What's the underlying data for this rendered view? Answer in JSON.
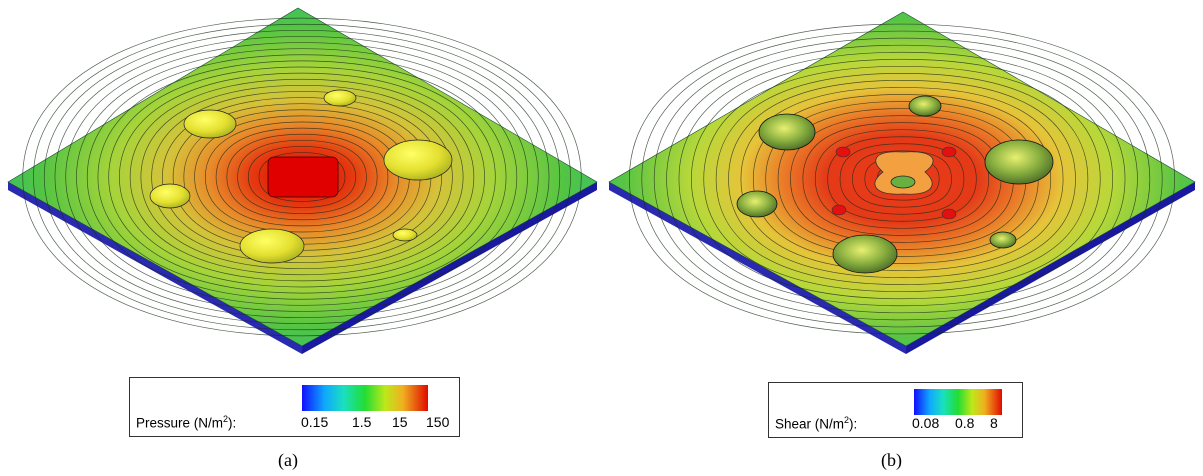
{
  "panels": [
    {
      "id": "a",
      "legend": {
        "label_prefix": "Pressure (N/m",
        "label_exp": "2",
        "label_suffix": "):",
        "ticks": [
          "0.15",
          "1.5",
          "15",
          "150"
        ]
      },
      "caption": "(a)",
      "colors": {
        "low": "#1f1fff",
        "mid": "#22dd55",
        "high": "#dd1100"
      }
    },
    {
      "id": "b",
      "legend": {
        "label_prefix": "Shear (N/m",
        "label_exp": "2",
        "label_suffix": "):",
        "ticks": [
          "0.08",
          "0.8",
          "8"
        ]
      },
      "caption": "(b)",
      "colors": {
        "low": "#1f1fff",
        "mid": "#22dd55",
        "high": "#dd1100"
      }
    }
  ]
}
